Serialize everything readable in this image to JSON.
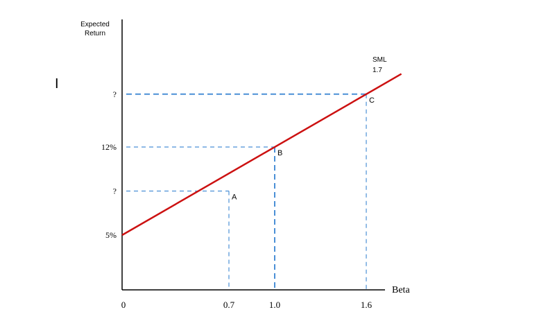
{
  "chart_data": {
    "type": "line",
    "ylabel_line1": "Expected",
    "ylabel_line2": "Return",
    "xlabel": "Beta",
    "x_ticks": [
      "0",
      "0.7",
      "1.0",
      "1.6"
    ],
    "y_ticks": [
      {
        "label": "5%",
        "value": 5
      },
      {
        "label": "?",
        "value": 8.5
      },
      {
        "label": "12%",
        "value": 12
      },
      {
        "label": "?",
        "value": 16.2
      }
    ],
    "xlim": [
      0,
      2.0
    ],
    "ylim": [
      0,
      20
    ],
    "series": [
      {
        "name": "SML",
        "x": [
          0,
          2.0
        ],
        "y": [
          5,
          21
        ],
        "color": "#cc1111"
      }
    ],
    "series_label": "SML",
    "series_label_extra": "1.7",
    "points": [
      {
        "label": "A",
        "x": 0.7,
        "y": 8.5
      },
      {
        "label": "B",
        "x": 1.0,
        "y": 12
      },
      {
        "label": "C",
        "x": 1.6,
        "y": 16.2
      }
    ],
    "guide_color": "#4a8fd6",
    "axis_color": "#000000",
    "grid": false
  },
  "cursor_glyph": "I"
}
